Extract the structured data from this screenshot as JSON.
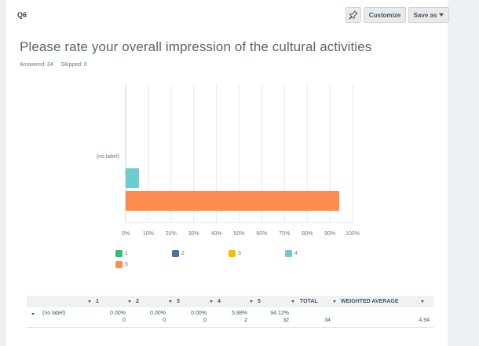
{
  "question": {
    "number": "Q6",
    "title": "Please rate your overall impression of the cultural activities",
    "answered": "Answered: 34",
    "skipped": "Skipped: 0"
  },
  "toolbar": {
    "pin_icon": "pin-icon",
    "customize_label": "Customize",
    "save_as_label": "Save as"
  },
  "colors": {
    "series_1": "#2fbf71",
    "series_2": "#4a6fa5",
    "series_3": "#f5bf00",
    "series_4": "#6ccdd0",
    "series_5": "#ff8b4f"
  },
  "chart_data": {
    "type": "bar",
    "orientation": "horizontal",
    "categories": [
      "(no label)"
    ],
    "series": [
      {
        "name": "1",
        "values": [
          0.0
        ]
      },
      {
        "name": "2",
        "values": [
          0.0
        ]
      },
      {
        "name": "3",
        "values": [
          0.0
        ]
      },
      {
        "name": "4",
        "values": [
          5.88
        ]
      },
      {
        "name": "5",
        "values": [
          94.12
        ]
      }
    ],
    "xlim": [
      0,
      100
    ],
    "xticks": [
      "0%",
      "10%",
      "20%",
      "30%",
      "40%",
      "50%",
      "60%",
      "70%",
      "80%",
      "90%",
      "100%"
    ],
    "grid": true,
    "legend_position": "bottom"
  },
  "table": {
    "headers": [
      "",
      "1",
      "2",
      "3",
      "4",
      "5",
      "TOTAL",
      "WEIGHTED AVERAGE"
    ],
    "rows": [
      {
        "label": "(no label)",
        "percents": [
          "0.00%",
          "0.00%",
          "0.00%",
          "5.88%",
          "94.12%"
        ],
        "counts": [
          "0",
          "0",
          "0",
          "2",
          "32"
        ],
        "total": "34",
        "weighted_average": "4.94"
      }
    ]
  }
}
